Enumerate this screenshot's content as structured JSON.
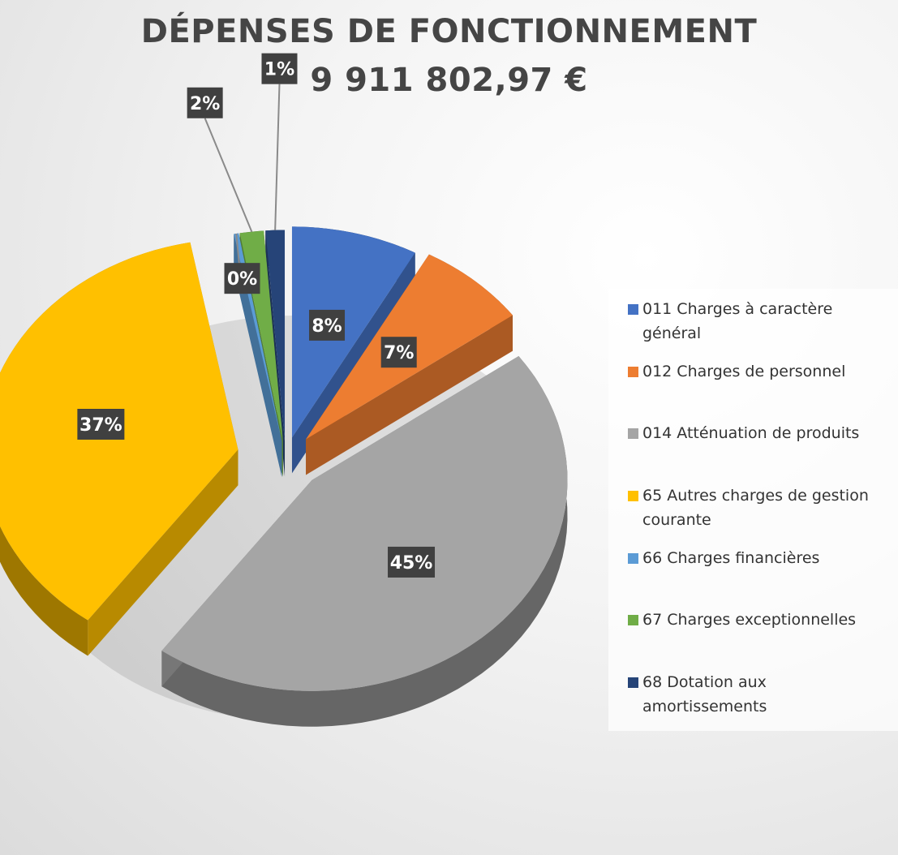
{
  "chart_data": {
    "type": "pie",
    "title": "DÉPENSES DE FONCTIONNEMENT",
    "subtitle": "9 911 802,97 €",
    "legend_position": "right",
    "slices": [
      {
        "name": "011 Charges à caractère général",
        "value": 8,
        "label": "8%",
        "color": "#4472c4"
      },
      {
        "name": "012 Charges de personnel",
        "value": 7,
        "label": "7%",
        "color": "#ed7d31"
      },
      {
        "name": "014 Atténuation de produits",
        "value": 45,
        "label": "45%",
        "color": "#a5a5a5"
      },
      {
        "name": "65 Autres charges de gestion courante",
        "value": 37,
        "label": "37%",
        "color": "#ffc000"
      },
      {
        "name": "66 Charges financières",
        "value": 0.3,
        "label": "0%",
        "color": "#5b9bd5"
      },
      {
        "name": "67 Charges exceptionnelles",
        "value": 1.5,
        "label": "2%",
        "color": "#70ad47"
      },
      {
        "name": "68 Dotation aux amortissements",
        "value": 1.2,
        "label": "1%",
        "color": "#264478"
      }
    ]
  }
}
